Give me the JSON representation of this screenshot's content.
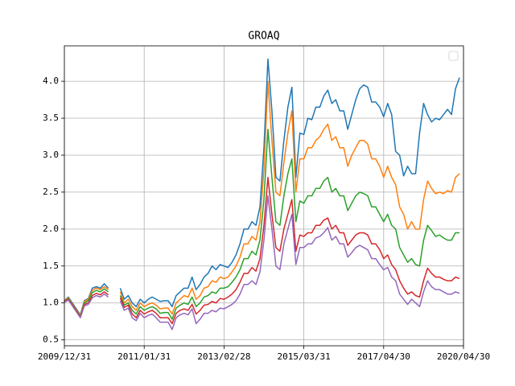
{
  "chart_data": {
    "type": "line",
    "title": "GROAQ",
    "categories": [
      "2009/12/31",
      null,
      null,
      null,
      null,
      null,
      null,
      null,
      null,
      null,
      null,
      null,
      null,
      null,
      null,
      null,
      null,
      null,
      null,
      null,
      "2011/01/31",
      null,
      null,
      null,
      null,
      null,
      null,
      null,
      null,
      null,
      null,
      null,
      null,
      null,
      null,
      null,
      null,
      null,
      null,
      null,
      "2013/02/28",
      null,
      null,
      null,
      null,
      null,
      null,
      null,
      null,
      null,
      null,
      null,
      null,
      null,
      null,
      null,
      null,
      null,
      null,
      null,
      "2015/03/31",
      null,
      null,
      null,
      null,
      null,
      null,
      null,
      null,
      null,
      null,
      null,
      null,
      null,
      null,
      null,
      null,
      null,
      null,
      null,
      "2017/04/30",
      null,
      null,
      null,
      null,
      null,
      null,
      null,
      null,
      null,
      null,
      null,
      null,
      null,
      null,
      null,
      null,
      null,
      null,
      null,
      "2020/04/30"
    ],
    "series": [
      {
        "color": "#1f77b4",
        "values": [
          1.03,
          1.08,
          1.0,
          0.92,
          0.84,
          1.03,
          1.06,
          1.2,
          1.22,
          1.2,
          1.26,
          1.2,
          null,
          null,
          1.2,
          1.05,
          1.1,
          1.0,
          0.95,
          1.05,
          1.0,
          1.05,
          1.08,
          1.05,
          1.02,
          1.03,
          1.03,
          0.95,
          1.1,
          1.15,
          1.2,
          1.2,
          1.35,
          1.18,
          1.25,
          1.35,
          1.4,
          1.5,
          1.45,
          1.52,
          1.5,
          1.48,
          1.55,
          1.65,
          1.8,
          2.0,
          2.0,
          2.1,
          2.05,
          2.3,
          3.1,
          4.3,
          3.6,
          2.7,
          2.65,
          3.2,
          3.65,
          3.92,
          2.7,
          3.3,
          3.28,
          3.5,
          3.48,
          3.65,
          3.65,
          3.8,
          3.88,
          3.7,
          3.75,
          3.6,
          3.6,
          3.35,
          3.55,
          3.75,
          3.9,
          3.95,
          3.92,
          3.72,
          3.72,
          3.65,
          3.52,
          3.7,
          3.55,
          3.05,
          3.0,
          2.72,
          2.85,
          2.75,
          2.75,
          3.3,
          3.7,
          3.55,
          3.45,
          3.5,
          3.48,
          3.55,
          3.62,
          3.55,
          3.9,
          4.05,
          null
        ]
      },
      {
        "color": "#ff7f0e",
        "values": [
          1.03,
          1.07,
          0.99,
          0.91,
          0.83,
          1.02,
          1.05,
          1.17,
          1.2,
          1.18,
          1.22,
          1.18,
          null,
          null,
          1.15,
          1.0,
          1.05,
          0.95,
          0.9,
          1.0,
          0.95,
          0.98,
          1.0,
          0.97,
          0.92,
          0.93,
          0.93,
          0.85,
          1.0,
          1.05,
          1.1,
          1.08,
          1.2,
          1.05,
          1.1,
          1.2,
          1.22,
          1.3,
          1.28,
          1.35,
          1.33,
          1.35,
          1.42,
          1.5,
          1.62,
          1.8,
          1.8,
          1.9,
          1.85,
          2.1,
          2.8,
          4.0,
          3.2,
          2.5,
          2.45,
          2.9,
          3.3,
          3.6,
          2.5,
          2.95,
          2.95,
          3.1,
          3.1,
          3.2,
          3.25,
          3.35,
          3.42,
          3.2,
          3.25,
          3.1,
          3.1,
          2.85,
          3.0,
          3.1,
          3.2,
          3.2,
          3.15,
          2.95,
          2.95,
          2.85,
          2.7,
          2.85,
          2.7,
          2.6,
          2.3,
          2.2,
          2.0,
          2.1,
          2.0,
          2.0,
          2.4,
          2.65,
          2.55,
          2.48,
          2.5,
          2.48,
          2.52,
          2.5,
          2.7,
          2.75,
          null
        ]
      },
      {
        "color": "#2ca02c",
        "values": [
          1.02,
          1.06,
          0.98,
          0.9,
          0.82,
          1.0,
          1.03,
          1.14,
          1.17,
          1.15,
          1.19,
          1.15,
          null,
          null,
          1.1,
          0.97,
          1.0,
          0.9,
          0.85,
          0.95,
          0.9,
          0.93,
          0.95,
          0.92,
          0.86,
          0.87,
          0.87,
          0.78,
          0.93,
          0.97,
          1.0,
          0.98,
          1.08,
          0.95,
          1.0,
          1.08,
          1.1,
          1.15,
          1.13,
          1.2,
          1.2,
          1.22,
          1.28,
          1.35,
          1.45,
          1.6,
          1.6,
          1.7,
          1.65,
          1.85,
          2.4,
          3.35,
          2.7,
          2.1,
          2.05,
          2.45,
          2.75,
          2.95,
          2.1,
          2.38,
          2.35,
          2.45,
          2.45,
          2.55,
          2.55,
          2.65,
          2.7,
          2.5,
          2.55,
          2.45,
          2.45,
          2.25,
          2.35,
          2.45,
          2.5,
          2.48,
          2.45,
          2.3,
          2.3,
          2.2,
          2.1,
          2.2,
          2.05,
          2.0,
          1.75,
          1.65,
          1.55,
          1.6,
          1.52,
          1.5,
          1.85,
          2.05,
          1.98,
          1.9,
          1.92,
          1.88,
          1.85,
          1.85,
          1.95,
          1.95,
          null
        ]
      },
      {
        "color": "#d62728",
        "values": [
          1.02,
          1.05,
          0.97,
          0.89,
          0.81,
          0.98,
          1.0,
          1.1,
          1.13,
          1.11,
          1.15,
          1.11,
          null,
          null,
          1.07,
          0.94,
          0.97,
          0.85,
          0.8,
          0.9,
          0.85,
          0.88,
          0.9,
          0.86,
          0.8,
          0.8,
          0.8,
          0.72,
          0.86,
          0.9,
          0.92,
          0.9,
          0.98,
          0.85,
          0.9,
          0.97,
          0.98,
          1.02,
          1.0,
          1.06,
          1.05,
          1.08,
          1.12,
          1.18,
          1.28,
          1.4,
          1.4,
          1.48,
          1.43,
          1.6,
          2.05,
          2.7,
          2.2,
          1.75,
          1.7,
          2.0,
          2.2,
          2.4,
          1.7,
          1.92,
          1.9,
          1.95,
          1.95,
          2.05,
          2.05,
          2.12,
          2.15,
          2.0,
          2.05,
          1.95,
          1.95,
          1.78,
          1.85,
          1.92,
          1.95,
          1.95,
          1.92,
          1.8,
          1.8,
          1.72,
          1.6,
          1.65,
          1.52,
          1.45,
          1.3,
          1.2,
          1.12,
          1.15,
          1.1,
          1.08,
          1.3,
          1.47,
          1.4,
          1.35,
          1.35,
          1.32,
          1.3,
          1.3,
          1.35,
          1.33,
          null
        ]
      },
      {
        "color": "#9467bd",
        "values": [
          1.01,
          1.04,
          0.96,
          0.88,
          0.8,
          0.96,
          0.98,
          1.07,
          1.1,
          1.08,
          1.12,
          1.08,
          null,
          null,
          1.03,
          0.9,
          0.93,
          0.8,
          0.76,
          0.86,
          0.8,
          0.83,
          0.85,
          0.8,
          0.74,
          0.74,
          0.74,
          0.64,
          0.8,
          0.84,
          0.86,
          0.84,
          0.92,
          0.72,
          0.78,
          0.86,
          0.86,
          0.9,
          0.88,
          0.93,
          0.92,
          0.95,
          0.98,
          1.03,
          1.12,
          1.25,
          1.25,
          1.3,
          1.25,
          1.42,
          1.85,
          2.45,
          2.0,
          1.5,
          1.45,
          1.8,
          2.0,
          2.2,
          1.52,
          1.75,
          1.75,
          1.8,
          1.8,
          1.88,
          1.9,
          1.95,
          2.02,
          1.85,
          1.9,
          1.8,
          1.8,
          1.62,
          1.68,
          1.75,
          1.78,
          1.75,
          1.72,
          1.6,
          1.6,
          1.52,
          1.45,
          1.48,
          1.35,
          1.3,
          1.12,
          1.05,
          0.98,
          1.05,
          1.0,
          0.95,
          1.15,
          1.3,
          1.22,
          1.18,
          1.18,
          1.15,
          1.12,
          1.12,
          1.15,
          1.13,
          null
        ]
      }
    ],
    "ylim": [
      0.42,
      4.48
    ],
    "yticks": [
      0.5,
      {
        "value": 1,
        "label": "1.0"
      },
      1.5,
      {
        "value": 2,
        "label": "2.0"
      },
      2.5,
      {
        "value": 3,
        "label": "3.0"
      },
      3.5,
      {
        "value": 4,
        "label": "4.0"
      }
    ],
    "grid": true,
    "legend": "upper right"
  }
}
